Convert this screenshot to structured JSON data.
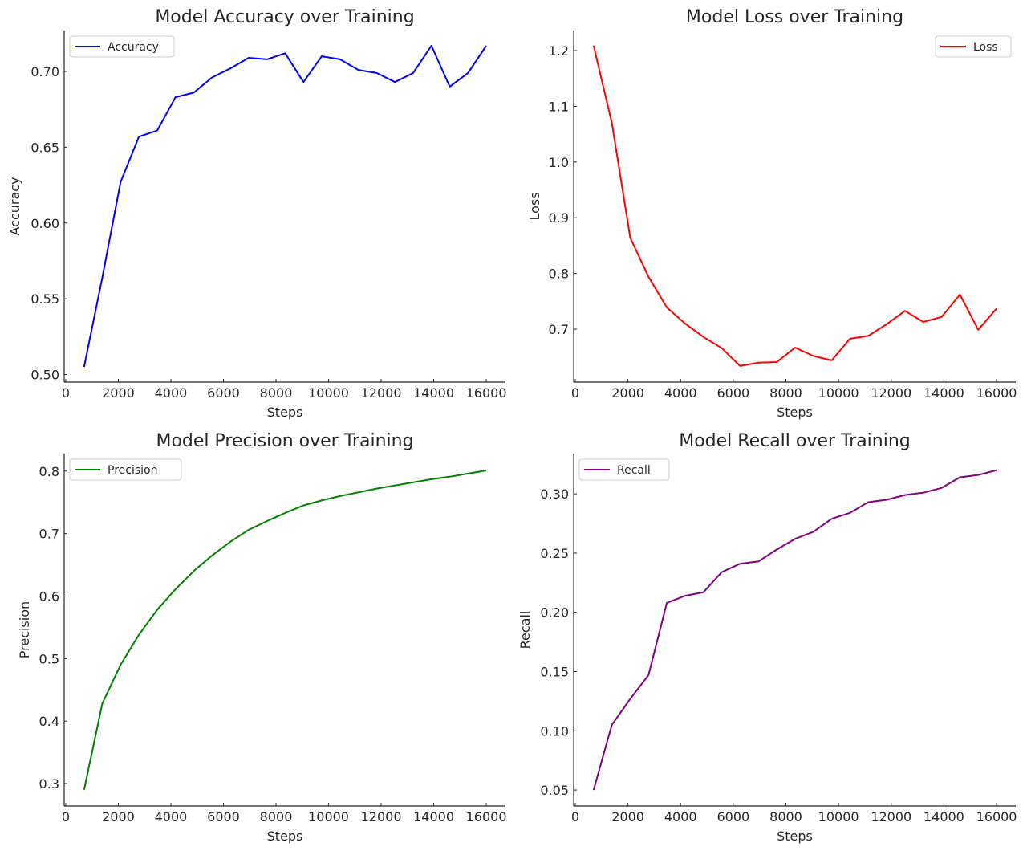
{
  "chart_data": [
    {
      "type": "line",
      "title": "Model Accuracy over Training",
      "xlabel": "Steps",
      "ylabel": "Accuracy",
      "xlim": [
        -60,
        16730
      ],
      "ylim": [
        0.495,
        0.727
      ],
      "xticks": [
        0,
        2000,
        4000,
        6000,
        8000,
        10000,
        12000,
        14000,
        16000
      ],
      "yticks": [
        0.5,
        0.55,
        0.6,
        0.65,
        0.7
      ],
      "ytick_labels": [
        "0.50",
        "0.55",
        "0.60",
        "0.65",
        "0.70"
      ],
      "grid": false,
      "legend": "top-left",
      "x": [
        696,
        1391,
        2087,
        2783,
        3478,
        4174,
        4870,
        5565,
        6261,
        6957,
        7652,
        8348,
        9043,
        9739,
        10435,
        11130,
        11826,
        12522,
        13217,
        13913,
        14609,
        15304,
        16000
      ],
      "series": [
        {
          "name": "Accuracy",
          "color": "#0000ff",
          "values": [
            0.505,
            0.564,
            0.627,
            0.657,
            0.661,
            0.683,
            0.686,
            0.696,
            0.702,
            0.709,
            0.708,
            0.712,
            0.693,
            0.71,
            0.708,
            0.701,
            0.699,
            0.693,
            0.699,
            0.717,
            0.69,
            0.699,
            0.717
          ]
        }
      ]
    },
    {
      "type": "line",
      "title": "Model Loss over Training",
      "xlabel": "Steps",
      "ylabel": "Loss",
      "xlim": [
        -60,
        16730
      ],
      "ylim": [
        0.605,
        1.236
      ],
      "xticks": [
        0,
        2000,
        4000,
        6000,
        8000,
        10000,
        12000,
        14000,
        16000
      ],
      "yticks": [
        0.7,
        0.8,
        0.9,
        1.0,
        1.1,
        1.2
      ],
      "ytick_labels": [
        "0.7",
        "0.8",
        "0.9",
        "1.0",
        "1.1",
        "1.2"
      ],
      "grid": false,
      "legend": "top-right",
      "x": [
        696,
        1391,
        2087,
        2783,
        3478,
        4174,
        4870,
        5565,
        6261,
        6957,
        7652,
        8348,
        9043,
        9739,
        10435,
        11130,
        11826,
        12522,
        13217,
        13913,
        14609,
        15304,
        16000
      ],
      "series": [
        {
          "name": "Loss",
          "color": "#ff0000",
          "values": [
            1.209,
            1.07,
            0.864,
            0.794,
            0.739,
            0.71,
            0.686,
            0.666,
            0.634,
            0.64,
            0.641,
            0.667,
            0.652,
            0.644,
            0.683,
            0.688,
            0.709,
            0.733,
            0.713,
            0.722,
            0.762,
            0.699,
            0.737
          ]
        }
      ]
    },
    {
      "type": "line",
      "title": "Model Precision over Training",
      "xlabel": "Steps",
      "ylabel": "Precision",
      "xlim": [
        -60,
        16730
      ],
      "ylim": [
        0.264,
        0.828
      ],
      "xticks": [
        0,
        2000,
        4000,
        6000,
        8000,
        10000,
        12000,
        14000,
        16000
      ],
      "yticks": [
        0.3,
        0.4,
        0.5,
        0.6,
        0.7,
        0.8
      ],
      "ytick_labels": [
        "0.3",
        "0.4",
        "0.5",
        "0.6",
        "0.7",
        "0.8"
      ],
      "grid": false,
      "legend": "top-left",
      "x": [
        696,
        1391,
        2087,
        2783,
        3478,
        4174,
        4870,
        5565,
        6261,
        6957,
        7652,
        8348,
        9043,
        9739,
        10435,
        11130,
        11826,
        12522,
        13217,
        13913,
        14609,
        15304,
        16000
      ],
      "series": [
        {
          "name": "Precision",
          "color": "#008000",
          "values": [
            0.29,
            0.428,
            0.49,
            0.538,
            0.578,
            0.611,
            0.64,
            0.665,
            0.687,
            0.706,
            0.72,
            0.733,
            0.745,
            0.753,
            0.76,
            0.766,
            0.772,
            0.777,
            0.782,
            0.787,
            0.791,
            0.796,
            0.801
          ]
        }
      ]
    },
    {
      "type": "line",
      "title": "Model Recall over Training",
      "xlabel": "Steps",
      "ylabel": "Recall",
      "xlim": [
        -60,
        16730
      ],
      "ylim": [
        0.0365,
        0.334
      ],
      "xticks": [
        0,
        2000,
        4000,
        6000,
        8000,
        10000,
        12000,
        14000,
        16000
      ],
      "yticks": [
        0.05,
        0.1,
        0.15,
        0.2,
        0.25,
        0.3
      ],
      "ytick_labels": [
        "0.05",
        "0.10",
        "0.15",
        "0.20",
        "0.25",
        "0.30"
      ],
      "grid": false,
      "legend": "top-left",
      "x": [
        696,
        1391,
        2087,
        2783,
        3478,
        4174,
        4870,
        5565,
        6261,
        6957,
        7652,
        8348,
        9043,
        9739,
        10435,
        11130,
        11826,
        12522,
        13217,
        13913,
        14609,
        15304,
        16000
      ],
      "series": [
        {
          "name": "Recall",
          "color": "#800080",
          "values": [
            0.05,
            0.105,
            0.127,
            0.147,
            0.208,
            0.214,
            0.217,
            0.234,
            0.241,
            0.243,
            0.253,
            0.262,
            0.268,
            0.279,
            0.284,
            0.293,
            0.295,
            0.299,
            0.301,
            0.305,
            0.314,
            0.316,
            0.32
          ]
        }
      ]
    }
  ]
}
